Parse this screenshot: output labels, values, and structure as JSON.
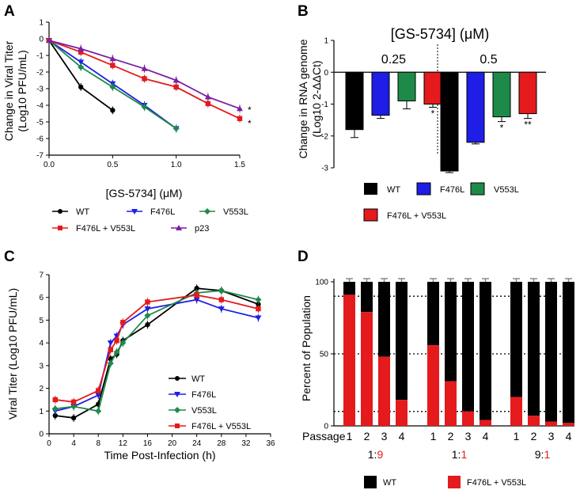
{
  "chart_data": [
    {
      "panel": "A",
      "type": "line",
      "xlabel": "[GS-5734] (μM)",
      "ylabel_line1": "Change in Viral Titer",
      "ylabel_line2": "(Log10 PFU/mL)",
      "xlim": [
        0,
        1.5
      ],
      "ylim": [
        -7,
        1
      ],
      "x_ticks": [
        0.0,
        0.5,
        1.0,
        1.5
      ],
      "x_tick_labels": [
        "0.0",
        "0.5",
        "1.0",
        "1.5"
      ],
      "y_ticks": [
        1,
        0,
        -1,
        -2,
        -3,
        -4,
        -5,
        -6,
        -7
      ],
      "y_tick_labels": [
        "1",
        "0",
        "-1",
        "-2",
        "-3",
        "-4",
        "-5",
        "-6",
        "-7"
      ],
      "series": [
        {
          "name": "WT",
          "color": "#000000",
          "marker": "circle",
          "x": [
            0,
            0.25,
            0.5
          ],
          "y": [
            -0.1,
            -2.9,
            -4.3
          ]
        },
        {
          "name": "F476L",
          "color": "#1e1ee6",
          "marker": "tri-down",
          "x": [
            0,
            0.25,
            0.5,
            0.75,
            1.0
          ],
          "y": [
            -0.1,
            -1.4,
            -2.7,
            -4.0,
            -5.4
          ]
        },
        {
          "name": "V553L",
          "color": "#1e8a4a",
          "marker": "diamond",
          "x": [
            0,
            0.25,
            0.5,
            0.75,
            1.0
          ],
          "y": [
            -0.1,
            -1.7,
            -2.9,
            -4.1,
            -5.4
          ]
        },
        {
          "name": "F476L + V553L",
          "color": "#e41a1c",
          "marker": "square",
          "x": [
            0,
            0.25,
            0.5,
            0.75,
            1.0,
            1.25,
            1.5
          ],
          "y": [
            -0.1,
            -0.8,
            -1.6,
            -2.4,
            -2.9,
            -3.9,
            -4.8
          ]
        },
        {
          "name": "p23",
          "color": "#7b1fa2",
          "marker": "triangle",
          "x": [
            0,
            0.25,
            0.5,
            0.75,
            1.0,
            1.25,
            1.5
          ],
          "y": [
            -0.1,
            -0.6,
            -1.2,
            -1.8,
            -2.5,
            -3.5,
            -4.2
          ]
        }
      ],
      "annotations": [
        "*",
        "*"
      ]
    },
    {
      "panel": "B",
      "type": "bar",
      "title": "[GS-5734] (μM)",
      "ylabel_line1": "Change in RNA genome",
      "ylabel_line2": "(Log10 2-ΔΔCt)",
      "ylim": [
        -3,
        1
      ],
      "y_ticks": [
        1,
        0,
        -1,
        -2,
        -3
      ],
      "y_tick_labels": [
        "1",
        "0",
        "-1",
        "-2",
        "-3"
      ],
      "groups": [
        "0.25",
        "0.5"
      ],
      "series": [
        {
          "name": "WT",
          "color": "#000000",
          "values": [
            -1.8,
            -3.1
          ]
        },
        {
          "name": "F476L",
          "color": "#1e1ee6",
          "values": [
            -1.35,
            -2.2
          ]
        },
        {
          "name": "V553L",
          "color": "#1e8a4a",
          "values": [
            -0.9,
            -1.4
          ]
        },
        {
          "name": "F476L + V553L",
          "color": "#e41a1c",
          "values": [
            -1.0,
            -1.3
          ]
        }
      ],
      "errors": [
        [
          0.25,
          0.05
        ],
        [
          0.1,
          0.05
        ],
        [
          0.25,
          0.15
        ],
        [
          0.1,
          0.15
        ]
      ],
      "annotations": [
        [
          "",
          "",
          "",
          "*"
        ],
        [
          "",
          "",
          "*",
          "**"
        ]
      ]
    },
    {
      "panel": "C",
      "type": "line",
      "xlabel": "Time Post-Infection (h)",
      "ylabel": "Viral Titer (Log10 PFU/mL)",
      "xlim": [
        0,
        36
      ],
      "ylim": [
        0,
        7
      ],
      "x_ticks": [
        0,
        4,
        8,
        12,
        16,
        20,
        24,
        28,
        32,
        36
      ],
      "x_tick_labels": [
        "0",
        "4",
        "8",
        "12",
        "16",
        "20",
        "24",
        "28",
        "32",
        "36"
      ],
      "y_ticks": [
        0,
        1,
        2,
        3,
        4,
        5,
        6,
        7
      ],
      "y_tick_labels": [
        "0",
        "1",
        "2",
        "3",
        "4",
        "5",
        "6",
        "7"
      ],
      "x": [
        1,
        4,
        8,
        10,
        11,
        12,
        16,
        24,
        28,
        34
      ],
      "series": [
        {
          "name": "WT",
          "color": "#000000",
          "marker": "circle",
          "y": [
            0.8,
            0.7,
            1.3,
            3.3,
            3.5,
            4.1,
            4.8,
            6.4,
            6.3,
            5.7
          ]
        },
        {
          "name": "F476L",
          "color": "#1e1ee6",
          "marker": "tri-down",
          "y": [
            1.0,
            1.2,
            1.7,
            4.0,
            4.3,
            4.8,
            5.5,
            5.9,
            5.5,
            5.1
          ]
        },
        {
          "name": "V553L",
          "color": "#1e8a4a",
          "marker": "diamond",
          "y": [
            1.1,
            1.2,
            1.0,
            3.1,
            3.6,
            4.0,
            5.2,
            6.2,
            6.3,
            5.9
          ]
        },
        {
          "name": "F476L + V553L",
          "color": "#e41a1c",
          "marker": "square",
          "y": [
            1.5,
            1.4,
            1.9,
            3.7,
            4.1,
            4.9,
            5.8,
            6.1,
            5.9,
            5.5
          ]
        }
      ]
    },
    {
      "panel": "D",
      "type": "bar",
      "stacked": true,
      "ylabel": "Percent of Population",
      "ylim": [
        0,
        100
      ],
      "y_ticks": [
        0,
        50,
        100
      ],
      "y_tick_labels": [
        "0",
        "50",
        "100"
      ],
      "passage_label": "Passage",
      "passages": [
        "1",
        "2",
        "3",
        "4"
      ],
      "groups": [
        {
          "ratio_left": "1:",
          "ratio_right": "9",
          "mutant": [
            91,
            79,
            48,
            18
          ],
          "wt": [
            100,
            100,
            100,
            100
          ]
        },
        {
          "ratio_left": "1:",
          "ratio_right": "1",
          "mutant": [
            56,
            31,
            10,
            4
          ],
          "wt": [
            100,
            100,
            100,
            100
          ]
        },
        {
          "ratio_left": "9:",
          "ratio_right": "1",
          "mutant": [
            20,
            7,
            3,
            2
          ],
          "wt": [
            100,
            100,
            100,
            100
          ]
        }
      ],
      "series_names": [
        "WT",
        "F476L + V553L"
      ],
      "series_colors": [
        "#000000",
        "#e41a1c"
      ]
    }
  ],
  "panels": {
    "a": "A",
    "b": "B",
    "c": "C",
    "d": "D"
  },
  "legend_a": [
    "WT",
    "F476L",
    "V553L",
    "F476L + V553L",
    "p23"
  ],
  "legend_b": [
    "WT",
    "F476L",
    "V553L",
    "F476L + V553L"
  ],
  "legend_c": [
    "WT",
    "F476L",
    "V553L",
    "F476L + V553L"
  ],
  "legend_d": [
    "WT",
    "F476L + V553L"
  ]
}
